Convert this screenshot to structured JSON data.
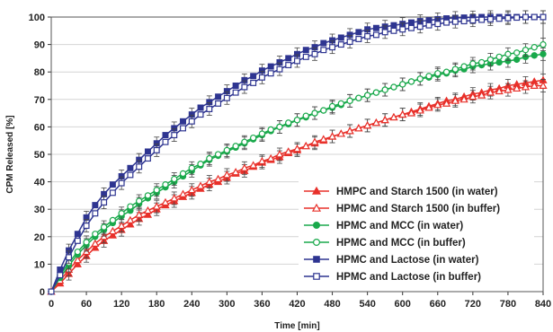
{
  "chart_data": {
    "type": "line",
    "title": "",
    "xlabel": "Time [min]",
    "ylabel": "CPM Released [%]",
    "xlim": [
      0,
      840
    ],
    "ylim": [
      0,
      100
    ],
    "x_ticks": [
      0,
      60,
      120,
      180,
      240,
      300,
      360,
      420,
      480,
      540,
      600,
      660,
      720,
      780,
      840
    ],
    "y_ticks": [
      0,
      10,
      20,
      30,
      40,
      50,
      60,
      70,
      80,
      90,
      100
    ],
    "grid": "horizontal",
    "legend_position": "bottom-right",
    "x": [
      0,
      15,
      30,
      45,
      60,
      75,
      90,
      105,
      120,
      135,
      150,
      165,
      180,
      195,
      210,
      225,
      240,
      255,
      270,
      285,
      300,
      315,
      330,
      345,
      360,
      375,
      390,
      405,
      420,
      435,
      450,
      465,
      480,
      495,
      510,
      525,
      540,
      555,
      570,
      585,
      600,
      615,
      630,
      645,
      660,
      675,
      690,
      705,
      720,
      735,
      750,
      765,
      780,
      795,
      810,
      825,
      840
    ],
    "series": [
      {
        "name": "HMPC and Starch 1500 (in water)",
        "color": "#e8302a",
        "marker": "triangle",
        "filled": true,
        "values": [
          0,
          3,
          6.5,
          10,
          13,
          16,
          18.5,
          20.5,
          22.5,
          24.5,
          26.5,
          28,
          30,
          31.5,
          33,
          34.5,
          36,
          37.5,
          39,
          40,
          41.5,
          43,
          44,
          45.5,
          47,
          48,
          49,
          50.5,
          51.5,
          53,
          54,
          55,
          56.5,
          57.5,
          58.5,
          59.5,
          60.5,
          61.5,
          62.5,
          63.5,
          64.5,
          65.5,
          66.5,
          67.5,
          68.5,
          69.5,
          70,
          71,
          72,
          72.5,
          73.5,
          74,
          75,
          75.5,
          76,
          76.5,
          77
        ]
      },
      {
        "name": "HPMC and Starch 1500 (in buffer)",
        "color": "#e8302a",
        "marker": "triangle",
        "filled": false,
        "values": [
          0,
          4,
          8,
          11.5,
          14.5,
          17.5,
          20,
          22,
          24,
          26,
          28,
          29.5,
          31,
          32.5,
          34,
          35.5,
          37,
          38.5,
          40,
          41,
          42.5,
          43.5,
          45,
          46,
          47.5,
          48.5,
          50,
          51,
          52,
          53,
          54.5,
          55.5,
          56.5,
          57.5,
          58.5,
          59.5,
          60.5,
          61.5,
          62.5,
          63.5,
          64.5,
          65,
          66,
          67,
          68,
          68.5,
          69.5,
          70,
          71,
          71.5,
          72.5,
          73,
          73.5,
          74,
          74.5,
          75,
          75
        ]
      },
      {
        "name": "HPMC and MCC (in water)",
        "color": "#19a94b",
        "marker": "circle",
        "filled": true,
        "values": [
          0,
          5,
          9.5,
          13.5,
          17,
          20,
          22.5,
          25,
          27.5,
          29.5,
          32,
          34,
          36,
          38,
          40,
          42,
          44,
          46,
          48,
          49.5,
          51,
          52.5,
          54,
          55.5,
          57,
          58.5,
          60,
          61,
          62.5,
          63.5,
          65,
          66,
          67,
          68,
          69.5,
          70.5,
          71.5,
          72.5,
          73.5,
          74.5,
          75.5,
          76.5,
          77.5,
          78,
          79,
          79.5,
          80.5,
          81,
          82,
          82.5,
          83,
          83.5,
          84,
          84.5,
          85.5,
          86,
          86.5
        ]
      },
      {
        "name": "HPMC and MCC (in buffer)",
        "color": "#19a94b",
        "marker": "circle",
        "filled": false,
        "values": [
          0,
          6,
          10.5,
          14.5,
          18,
          21,
          23.5,
          26,
          28.5,
          31,
          33,
          35,
          37,
          39,
          41,
          43,
          45,
          46.5,
          48.5,
          50,
          51.5,
          53,
          54.5,
          56,
          57.5,
          59,
          60,
          61.5,
          62.5,
          64,
          65,
          66,
          67.5,
          68.5,
          69.5,
          70.5,
          71.5,
          72.5,
          73.5,
          74.5,
          75.5,
          76.5,
          77.5,
          78.5,
          79.5,
          80,
          81,
          82,
          83,
          83.5,
          84.5,
          85.5,
          86.5,
          87,
          88,
          89,
          90
        ]
      },
      {
        "name": "HPMC and Lactose (in water)",
        "color": "#2e3591",
        "marker": "square",
        "filled": true,
        "values": [
          0,
          8,
          15,
          21,
          27,
          31.5,
          35.5,
          39,
          42,
          45,
          48,
          51,
          54,
          57,
          59.5,
          62,
          64.5,
          67,
          69,
          71,
          73,
          75,
          77,
          78.5,
          80.5,
          82,
          83.5,
          85,
          86.5,
          88,
          89,
          90.5,
          91.5,
          92.5,
          93.5,
          94.5,
          95.5,
          96,
          96.5,
          97,
          97.5,
          98,
          98.5,
          98.8,
          99.2,
          99.5,
          99.7,
          99.8,
          99.9,
          100,
          100,
          100,
          100,
          100,
          100,
          100,
          100
        ]
      },
      {
        "name": "HPMC and Lactose (in buffer)",
        "color": "#2e3591",
        "marker": "square",
        "filled": false,
        "values": [
          0,
          6,
          12.5,
          18.5,
          24,
          28.5,
          32.5,
          36,
          39.5,
          42.5,
          45.5,
          48.5,
          51.5,
          54.5,
          57,
          59.5,
          62,
          64.5,
          66.5,
          68.5,
          70.5,
          72.5,
          74.5,
          76,
          78,
          79.5,
          81,
          82.5,
          84,
          85.5,
          86.5,
          88,
          89,
          90,
          91,
          92,
          93,
          93.5,
          94.5,
          95,
          95.5,
          96,
          96.5,
          97,
          97.5,
          98,
          98.3,
          98.5,
          98.8,
          99,
          99.2,
          99.4,
          99.6,
          99.8,
          100,
          100,
          100
        ]
      }
    ]
  }
}
